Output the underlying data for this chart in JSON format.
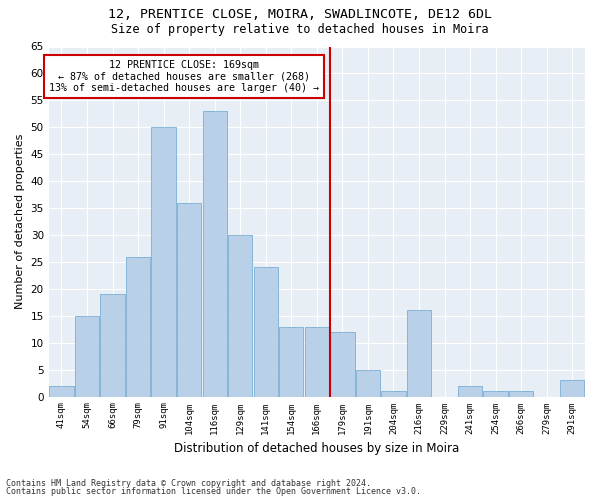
{
  "title1": "12, PRENTICE CLOSE, MOIRA, SWADLINCOTE, DE12 6DL",
  "title2": "Size of property relative to detached houses in Moira",
  "xlabel": "Distribution of detached houses by size in Moira",
  "ylabel": "Number of detached properties",
  "categories": [
    "41sqm",
    "54sqm",
    "66sqm",
    "79sqm",
    "91sqm",
    "104sqm",
    "116sqm",
    "129sqm",
    "141sqm",
    "154sqm",
    "166sqm",
    "179sqm",
    "191sqm",
    "204sqm",
    "216sqm",
    "229sqm",
    "241sqm",
    "254sqm",
    "266sqm",
    "279sqm",
    "291sqm"
  ],
  "values": [
    2,
    15,
    19,
    26,
    50,
    36,
    53,
    30,
    24,
    13,
    13,
    12,
    5,
    1,
    16,
    0,
    2,
    1,
    1,
    0,
    3
  ],
  "bar_color": "#b8d0e8",
  "bar_edge_color": "#7aafd4",
  "vline_x": 10.5,
  "vline_color": "#cc0000",
  "annotation_text": "12 PRENTICE CLOSE: 169sqm\n← 87% of detached houses are smaller (268)\n13% of semi-detached houses are larger (40) →",
  "annotation_box_color": "#ffffff",
  "annotation_box_edge": "#cc0000",
  "footer1": "Contains HM Land Registry data © Crown copyright and database right 2024.",
  "footer2": "Contains public sector information licensed under the Open Government Licence v3.0.",
  "bg_color": "#e8eef5",
  "ylim": [
    0,
    65
  ],
  "yticks": [
    0,
    5,
    10,
    15,
    20,
    25,
    30,
    35,
    40,
    45,
    50,
    55,
    60,
    65
  ]
}
